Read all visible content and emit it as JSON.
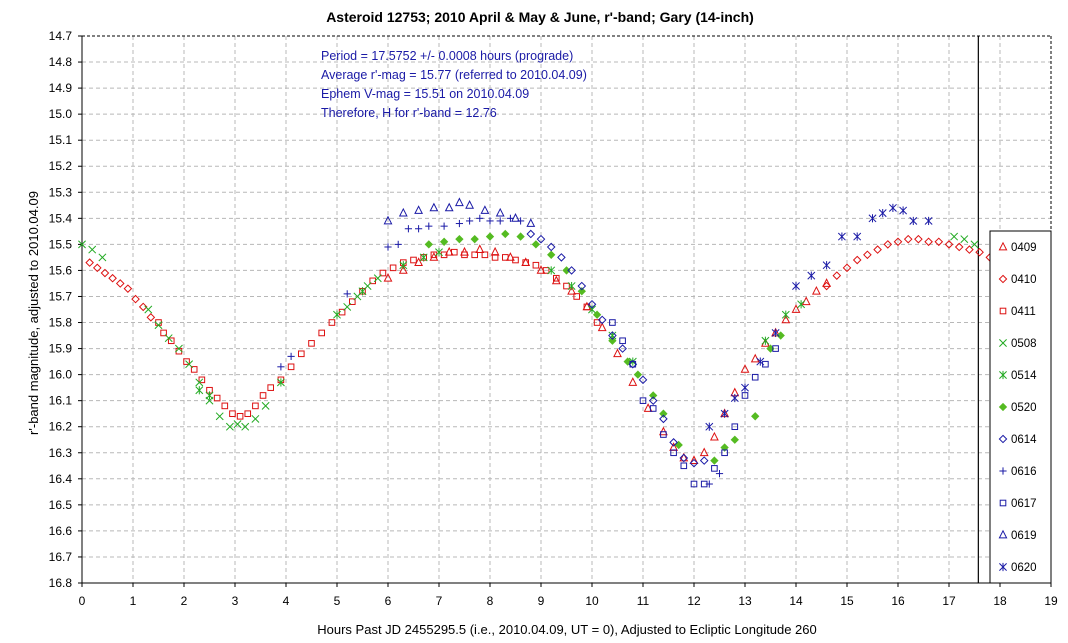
{
  "chart_data": {
    "type": "scatter",
    "title": "Asteroid 12753; 2010 April & May & June, r'-band; Gary (14-inch)",
    "xlabel": "Hours Past JD 2455295.5 (i.e., 2010.04.09, UT = 0), Adjusted to Ecliptic Longitude 260",
    "ylabel": "r'-band magnitude, adjusted to 2010.04.09",
    "xlim": [
      0,
      19
    ],
    "ylim": [
      14.7,
      16.8
    ],
    "y_inverted": true,
    "grid": true,
    "legend_placement": "right",
    "x_ticks": [
      "0",
      "1",
      "2",
      "3",
      "4",
      "5",
      "6",
      "7",
      "8",
      "9",
      "10",
      "11",
      "12",
      "13",
      "14",
      "15",
      "16",
      "17",
      "18",
      "19"
    ],
    "y_ticks": [
      "14.7",
      "14.8",
      "14.9",
      "15.0",
      "15.1",
      "15.2",
      "15.3",
      "15.4",
      "15.5",
      "15.6",
      "15.7",
      "15.8",
      "15.9",
      "16.0",
      "16.1",
      "16.2",
      "16.3",
      "16.4",
      "16.5",
      "16.6",
      "16.7",
      "16.8"
    ],
    "period_line_x": 17.5752,
    "annotations": [
      "Period = 17.5752 +/- 0.0008 hours (prograde)",
      "Average r'-mag = 15.77 (referred to 2010.04.09)",
      "Ephem V-mag = 15.51 on 2010.04.09",
      "Therefore, H for r'-band = 12.76"
    ],
    "series": [
      {
        "name": "0409",
        "marker": "triangle",
        "color": "#dd1111",
        "points": [
          [
            6.0,
            15.63
          ],
          [
            6.3,
            15.6
          ],
          [
            6.6,
            15.57
          ],
          [
            6.9,
            15.55
          ],
          [
            7.2,
            15.53
          ],
          [
            7.5,
            15.53
          ],
          [
            7.8,
            15.52
          ],
          [
            8.1,
            15.53
          ],
          [
            8.4,
            15.55
          ],
          [
            8.7,
            15.57
          ],
          [
            9.0,
            15.6
          ],
          [
            9.3,
            15.64
          ],
          [
            9.6,
            15.68
          ],
          [
            9.9,
            15.74
          ],
          [
            10.2,
            15.82
          ],
          [
            10.5,
            15.92
          ],
          [
            10.8,
            16.03
          ],
          [
            11.1,
            16.13
          ],
          [
            11.4,
            16.22
          ],
          [
            11.6,
            16.28
          ],
          [
            11.8,
            16.32
          ],
          [
            12.0,
            16.33
          ],
          [
            12.2,
            16.3
          ],
          [
            12.4,
            16.24
          ],
          [
            12.6,
            16.15
          ],
          [
            12.8,
            16.07
          ],
          [
            13.0,
            15.98
          ],
          [
            13.2,
            15.94
          ],
          [
            13.4,
            15.88
          ],
          [
            13.6,
            15.84
          ],
          [
            13.8,
            15.79
          ],
          [
            14.0,
            15.75
          ],
          [
            14.2,
            15.72
          ],
          [
            14.4,
            15.68
          ],
          [
            14.6,
            15.65
          ]
        ]
      },
      {
        "name": "0410",
        "marker": "diamond",
        "color": "#dd1111",
        "points": [
          [
            0.15,
            15.57
          ],
          [
            0.3,
            15.59
          ],
          [
            0.45,
            15.61
          ],
          [
            0.6,
            15.63
          ],
          [
            0.75,
            15.65
          ],
          [
            0.9,
            15.67
          ],
          [
            1.05,
            15.71
          ],
          [
            1.2,
            15.74
          ],
          [
            1.35,
            15.78
          ],
          [
            14.6,
            15.66
          ],
          [
            14.8,
            15.62
          ],
          [
            15.0,
            15.59
          ],
          [
            15.2,
            15.56
          ],
          [
            15.4,
            15.54
          ],
          [
            15.6,
            15.52
          ],
          [
            15.8,
            15.5
          ],
          [
            16.0,
            15.49
          ],
          [
            16.2,
            15.48
          ],
          [
            16.4,
            15.48
          ],
          [
            16.6,
            15.49
          ],
          [
            16.8,
            15.49
          ],
          [
            17.0,
            15.5
          ],
          [
            17.2,
            15.51
          ],
          [
            17.4,
            15.52
          ],
          [
            17.6,
            15.53
          ],
          [
            17.8,
            15.55
          ]
        ]
      },
      {
        "name": "0411",
        "marker": "square",
        "color": "#dd1111",
        "points": [
          [
            1.5,
            15.8
          ],
          [
            1.6,
            15.84
          ],
          [
            1.75,
            15.87
          ],
          [
            1.9,
            15.91
          ],
          [
            2.05,
            15.95
          ],
          [
            2.2,
            15.98
          ],
          [
            2.35,
            16.02
          ],
          [
            2.5,
            16.06
          ],
          [
            2.65,
            16.09
          ],
          [
            2.8,
            16.12
          ],
          [
            2.95,
            16.15
          ],
          [
            3.1,
            16.16
          ],
          [
            3.25,
            16.15
          ],
          [
            3.4,
            16.12
          ],
          [
            3.55,
            16.08
          ],
          [
            3.7,
            16.05
          ],
          [
            3.9,
            16.02
          ],
          [
            4.1,
            15.97
          ],
          [
            4.3,
            15.92
          ],
          [
            4.5,
            15.88
          ],
          [
            4.7,
            15.84
          ],
          [
            4.9,
            15.8
          ],
          [
            5.1,
            15.76
          ],
          [
            5.3,
            15.72
          ],
          [
            5.5,
            15.68
          ],
          [
            5.7,
            15.64
          ],
          [
            5.9,
            15.61
          ],
          [
            6.1,
            15.59
          ],
          [
            6.3,
            15.57
          ],
          [
            6.5,
            15.56
          ],
          [
            6.7,
            15.55
          ],
          [
            6.9,
            15.54
          ],
          [
            7.1,
            15.54
          ],
          [
            7.3,
            15.53
          ],
          [
            7.5,
            15.54
          ],
          [
            7.7,
            15.54
          ],
          [
            7.9,
            15.54
          ],
          [
            8.1,
            15.55
          ],
          [
            8.3,
            15.55
          ],
          [
            8.5,
            15.56
          ],
          [
            8.7,
            15.57
          ],
          [
            8.9,
            15.58
          ],
          [
            9.1,
            15.6
          ],
          [
            9.3,
            15.63
          ],
          [
            9.5,
            15.66
          ],
          [
            9.7,
            15.7
          ],
          [
            9.9,
            15.74
          ],
          [
            10.1,
            15.8
          ]
        ]
      },
      {
        "name": "0508",
        "marker": "x",
        "color": "#22aa22",
        "points": [
          [
            0.0,
            15.5
          ],
          [
            0.2,
            15.52
          ],
          [
            0.4,
            15.55
          ],
          [
            1.3,
            15.75
          ],
          [
            1.5,
            15.81
          ],
          [
            1.7,
            15.86
          ],
          [
            1.9,
            15.9
          ],
          [
            2.1,
            15.96
          ],
          [
            2.3,
            16.03
          ],
          [
            2.5,
            16.1
          ],
          [
            2.7,
            16.16
          ],
          [
            2.9,
            16.2
          ],
          [
            3.05,
            16.19
          ],
          [
            3.2,
            16.2
          ],
          [
            3.4,
            16.17
          ],
          [
            3.6,
            16.12
          ],
          [
            5.2,
            15.74
          ],
          [
            5.4,
            15.7
          ],
          [
            5.6,
            15.66
          ],
          [
            5.8,
            15.63
          ],
          [
            17.1,
            15.47
          ],
          [
            17.3,
            15.48
          ],
          [
            17.5,
            15.5
          ]
        ]
      },
      {
        "name": "0514",
        "marker": "asterisk",
        "color": "#22aa22",
        "points": [
          [
            2.3,
            16.06
          ],
          [
            2.5,
            16.08
          ],
          [
            3.9,
            16.03
          ],
          [
            5.0,
            15.77
          ],
          [
            5.5,
            15.68
          ],
          [
            6.3,
            15.58
          ],
          [
            6.7,
            15.55
          ],
          [
            7.0,
            15.53
          ],
          [
            9.2,
            15.6
          ],
          [
            9.6,
            15.66
          ],
          [
            10.0,
            15.75
          ],
          [
            10.4,
            15.85
          ],
          [
            10.8,
            15.95
          ],
          [
            13.4,
            15.87
          ],
          [
            13.8,
            15.77
          ],
          [
            14.1,
            15.73
          ]
        ]
      },
      {
        "name": "0520",
        "marker": "diamond-filled",
        "color": "#55bb22",
        "points": [
          [
            6.8,
            15.5
          ],
          [
            7.1,
            15.49
          ],
          [
            7.4,
            15.48
          ],
          [
            7.7,
            15.48
          ],
          [
            8.0,
            15.47
          ],
          [
            8.3,
            15.46
          ],
          [
            8.6,
            15.47
          ],
          [
            8.9,
            15.5
          ],
          [
            9.2,
            15.54
          ],
          [
            9.5,
            15.6
          ],
          [
            9.8,
            15.68
          ],
          [
            10.1,
            15.77
          ],
          [
            10.4,
            15.87
          ],
          [
            10.7,
            15.95
          ],
          [
            10.9,
            16.0
          ],
          [
            11.2,
            16.08
          ],
          [
            11.4,
            16.15
          ],
          [
            11.7,
            16.27
          ],
          [
            12.4,
            16.33
          ],
          [
            12.6,
            16.28
          ],
          [
            12.8,
            16.25
          ],
          [
            13.2,
            16.16
          ],
          [
            13.5,
            15.9
          ],
          [
            13.7,
            15.85
          ]
        ]
      },
      {
        "name": "0614",
        "marker": "diamond",
        "color": "#1a1aa6",
        "points": [
          [
            8.8,
            15.46
          ],
          [
            9.0,
            15.48
          ],
          [
            9.2,
            15.51
          ],
          [
            9.4,
            15.55
          ],
          [
            9.6,
            15.6
          ],
          [
            9.8,
            15.66
          ],
          [
            10.0,
            15.73
          ],
          [
            10.2,
            15.79
          ],
          [
            10.4,
            15.85
          ],
          [
            10.6,
            15.9
          ],
          [
            10.8,
            15.96
          ],
          [
            11.0,
            16.02
          ],
          [
            11.2,
            16.1
          ],
          [
            11.4,
            16.17
          ],
          [
            11.6,
            16.26
          ],
          [
            11.8,
            16.32
          ],
          [
            12.0,
            16.34
          ],
          [
            12.2,
            16.33
          ]
        ]
      },
      {
        "name": "0616",
        "marker": "plus",
        "color": "#1a1aa6",
        "points": [
          [
            3.9,
            15.97
          ],
          [
            4.1,
            15.93
          ],
          [
            5.2,
            15.69
          ],
          [
            6.0,
            15.51
          ],
          [
            6.2,
            15.5
          ],
          [
            6.4,
            15.44
          ],
          [
            6.6,
            15.44
          ],
          [
            6.8,
            15.43
          ],
          [
            7.1,
            15.43
          ],
          [
            7.4,
            15.42
          ],
          [
            7.6,
            15.41
          ],
          [
            7.8,
            15.4
          ],
          [
            8.0,
            15.41
          ],
          [
            8.2,
            15.41
          ],
          [
            8.4,
            15.4
          ],
          [
            8.6,
            15.41
          ],
          [
            12.3,
            16.42
          ],
          [
            12.5,
            16.38
          ]
        ]
      },
      {
        "name": "0617",
        "marker": "square",
        "color": "#1a1aa6",
        "points": [
          [
            10.4,
            15.8
          ],
          [
            10.6,
            15.87
          ],
          [
            10.8,
            15.96
          ],
          [
            11.0,
            16.1
          ],
          [
            11.2,
            16.13
          ],
          [
            11.4,
            16.23
          ],
          [
            11.6,
            16.3
          ],
          [
            11.8,
            16.35
          ],
          [
            12.0,
            16.42
          ],
          [
            12.2,
            16.42
          ],
          [
            12.4,
            16.36
          ],
          [
            12.6,
            16.3
          ],
          [
            12.8,
            16.2
          ],
          [
            13.0,
            16.08
          ],
          [
            13.2,
            16.01
          ],
          [
            13.4,
            15.96
          ],
          [
            13.6,
            15.9
          ]
        ]
      },
      {
        "name": "0619",
        "marker": "triangle",
        "color": "#1a1aa6",
        "points": [
          [
            6.0,
            15.41
          ],
          [
            6.3,
            15.38
          ],
          [
            6.6,
            15.37
          ],
          [
            6.9,
            15.36
          ],
          [
            7.2,
            15.36
          ],
          [
            7.4,
            15.34
          ],
          [
            7.6,
            15.35
          ],
          [
            7.9,
            15.37
          ],
          [
            8.2,
            15.38
          ],
          [
            8.5,
            15.4
          ],
          [
            8.8,
            15.42
          ]
        ]
      },
      {
        "name": "0620",
        "marker": "asterisk",
        "color": "#1a1aa6",
        "points": [
          [
            12.3,
            16.2
          ],
          [
            12.6,
            16.15
          ],
          [
            12.8,
            16.09
          ],
          [
            13.0,
            16.05
          ],
          [
            13.3,
            15.95
          ],
          [
            13.6,
            15.84
          ],
          [
            14.0,
            15.66
          ],
          [
            14.3,
            15.62
          ],
          [
            14.6,
            15.58
          ],
          [
            14.9,
            15.47
          ],
          [
            15.2,
            15.47
          ],
          [
            15.5,
            15.4
          ],
          [
            15.7,
            15.38
          ],
          [
            15.9,
            15.36
          ],
          [
            16.1,
            15.37
          ],
          [
            16.3,
            15.41
          ],
          [
            16.6,
            15.41
          ]
        ]
      }
    ]
  }
}
